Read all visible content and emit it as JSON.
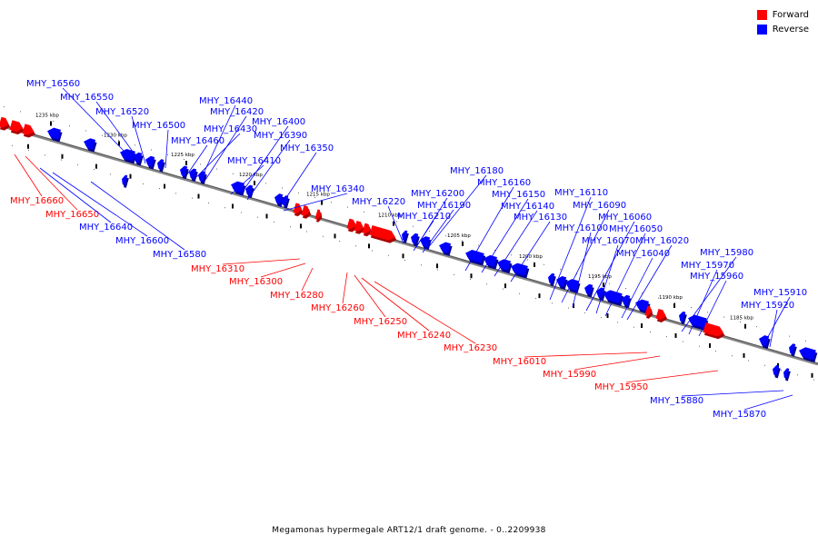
{
  "caption": "Megamonas hypermegale ART12/1 draft genome. - 0..2209938",
  "legend": {
    "forward_label": "Forward",
    "reverse_label": "Reverse",
    "forward_color": "#ff0000",
    "reverse_color": "#0000ff"
  },
  "axis": {
    "ticks": [
      {
        "label": "1235 kbp"
      },
      {
        "label": "1230 kbp"
      },
      {
        "label": "1225 kbp"
      },
      {
        "label": "1220 kbp"
      },
      {
        "label": "1215 kbp"
      },
      {
        "label": "1210 kbp"
      },
      {
        "label": "1205 kbp"
      },
      {
        "label": "1200 kbp"
      },
      {
        "label": "1195 kbp"
      },
      {
        "label": "1190 kbp"
      },
      {
        "label": "1185 kbp"
      }
    ]
  },
  "genes": [
    {
      "name": "MHY_16560",
      "strand": "reverse"
    },
    {
      "name": "MHY_16550",
      "strand": "reverse"
    },
    {
      "name": "MHY_16520",
      "strand": "reverse"
    },
    {
      "name": "MHY_16500",
      "strand": "reverse"
    },
    {
      "name": "MHY_16440",
      "strand": "reverse"
    },
    {
      "name": "MHY_16420",
      "strand": "reverse"
    },
    {
      "name": "MHY_16430",
      "strand": "reverse"
    },
    {
      "name": "MHY_16460",
      "strand": "reverse"
    },
    {
      "name": "MHY_16400",
      "strand": "reverse"
    },
    {
      "name": "MHY_16390",
      "strand": "reverse"
    },
    {
      "name": "MHY_16350",
      "strand": "reverse"
    },
    {
      "name": "MHY_16410",
      "strand": "reverse"
    },
    {
      "name": "MHY_16340",
      "strand": "reverse"
    },
    {
      "name": "MHY_16180",
      "strand": "reverse"
    },
    {
      "name": "MHY_16160",
      "strand": "reverse"
    },
    {
      "name": "MHY_16220",
      "strand": "reverse"
    },
    {
      "name": "MHY_16200",
      "strand": "reverse"
    },
    {
      "name": "MHY_16190",
      "strand": "reverse"
    },
    {
      "name": "MHY_16150",
      "strand": "reverse"
    },
    {
      "name": "MHY_16140",
      "strand": "reverse"
    },
    {
      "name": "MHY_16210",
      "strand": "reverse"
    },
    {
      "name": "MHY_16130",
      "strand": "reverse"
    },
    {
      "name": "MHY_16110",
      "strand": "reverse"
    },
    {
      "name": "MHY_16090",
      "strand": "reverse"
    },
    {
      "name": "MHY_16100",
      "strand": "reverse"
    },
    {
      "name": "MHY_16060",
      "strand": "reverse"
    },
    {
      "name": "MHY_16070",
      "strand": "reverse"
    },
    {
      "name": "MHY_16050",
      "strand": "reverse"
    },
    {
      "name": "MHY_16020",
      "strand": "reverse"
    },
    {
      "name": "MHY_16040",
      "strand": "reverse"
    },
    {
      "name": "MHY_15980",
      "strand": "reverse"
    },
    {
      "name": "MHY_15970",
      "strand": "reverse"
    },
    {
      "name": "MHY_15960",
      "strand": "reverse"
    },
    {
      "name": "MHY_15910",
      "strand": "reverse"
    },
    {
      "name": "MHY_15920",
      "strand": "reverse"
    },
    {
      "name": "MHY_16660",
      "strand": "forward"
    },
    {
      "name": "MHY_16650",
      "strand": "forward"
    },
    {
      "name": "MHY_16640",
      "strand": "reverse"
    },
    {
      "name": "MHY_16600",
      "strand": "reverse"
    },
    {
      "name": "MHY_16580",
      "strand": "reverse"
    },
    {
      "name": "MHY_16310",
      "strand": "forward"
    },
    {
      "name": "MHY_16300",
      "strand": "forward"
    },
    {
      "name": "MHY_16280",
      "strand": "forward"
    },
    {
      "name": "MHY_16260",
      "strand": "forward"
    },
    {
      "name": "MHY_16250",
      "strand": "forward"
    },
    {
      "name": "MHY_16240",
      "strand": "forward"
    },
    {
      "name": "MHY_16230",
      "strand": "forward"
    },
    {
      "name": "MHY_16010",
      "strand": "forward"
    },
    {
      "name": "MHY_15990",
      "strand": "forward"
    },
    {
      "name": "MHY_15950",
      "strand": "forward"
    },
    {
      "name": "MHY_15880",
      "strand": "reverse"
    },
    {
      "name": "MHY_15870",
      "strand": "reverse"
    }
  ]
}
